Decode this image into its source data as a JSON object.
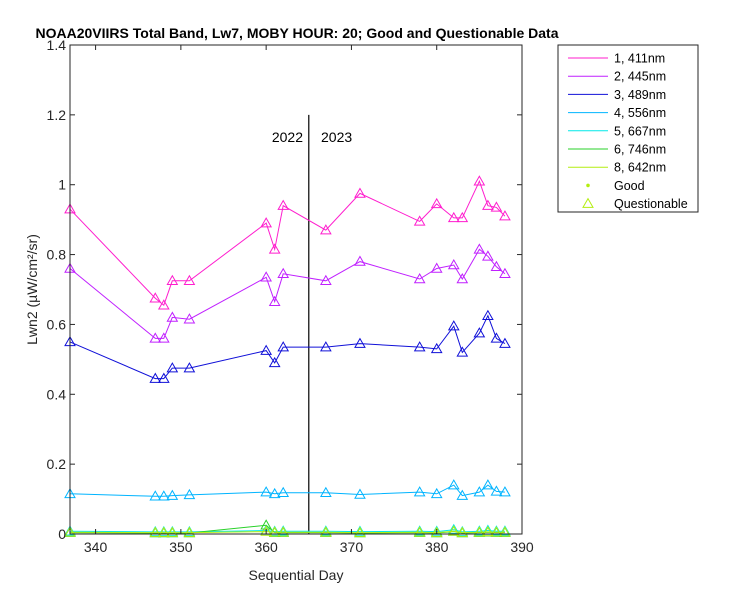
{
  "chart_data": {
    "type": "line",
    "title": "NOAA20VIIRS Total Band, Lw7, MOBY HOUR: 20;  Good and Questionable Data",
    "xlabel": "Sequential Day",
    "ylabel": "Lwn2 (µW/cm²/sr)",
    "xlim": [
      337,
      390
    ],
    "ylim": [
      0,
      1.4
    ],
    "xticks": [
      340,
      350,
      360,
      370,
      380,
      390
    ],
    "yticks": [
      0,
      0.2,
      0.4,
      0.6,
      0.8,
      1,
      1.2,
      1.4
    ],
    "grid": false,
    "legend_position": "outside-top-right",
    "year_divider": {
      "x": 365,
      "ymax": 1.2,
      "left_label": "2022",
      "right_label": "2023"
    },
    "x": [
      337,
      347,
      348,
      349,
      351,
      360,
      361,
      362,
      367,
      371,
      378,
      380,
      382,
      383,
      385,
      386,
      387,
      388
    ],
    "series": [
      {
        "name": "1, 411nm",
        "color": "#ff1dce",
        "values": [
          0.93,
          0.675,
          0.655,
          0.725,
          0.725,
          0.89,
          0.815,
          0.94,
          0.87,
          0.975,
          0.895,
          0.945,
          0.905,
          0.905,
          1.01,
          0.94,
          0.935,
          0.91
        ]
      },
      {
        "name": "2, 445nm",
        "color": "#c020ff",
        "values": [
          0.76,
          0.56,
          0.56,
          0.62,
          0.615,
          0.735,
          0.665,
          0.745,
          0.725,
          0.78,
          0.73,
          0.76,
          0.77,
          0.73,
          0.815,
          0.795,
          0.765,
          0.745
        ]
      },
      {
        "name": "3, 489nm",
        "color": "#1010d8",
        "values": [
          0.55,
          0.445,
          0.445,
          0.475,
          0.475,
          0.525,
          0.49,
          0.535,
          0.535,
          0.545,
          0.535,
          0.53,
          0.595,
          0.52,
          0.575,
          0.625,
          0.56,
          0.545
        ]
      },
      {
        "name": "4, 556nm",
        "color": "#00b4ff",
        "values": [
          0.115,
          0.108,
          0.108,
          0.11,
          0.112,
          0.12,
          0.115,
          0.118,
          0.118,
          0.113,
          0.12,
          0.115,
          0.14,
          0.11,
          0.12,
          0.14,
          0.122,
          0.12
        ]
      },
      {
        "name": "5, 667nm",
        "color": "#00e8e8",
        "values": [
          0.008,
          0.006,
          0.006,
          0.006,
          0.006,
          0.01,
          0.007,
          0.008,
          0.008,
          0.007,
          0.008,
          0.007,
          0.012,
          0.006,
          0.008,
          0.01,
          0.008,
          0.008
        ]
      },
      {
        "name": "6, 746nm",
        "color": "#2ad12a",
        "values": [
          0.004,
          0.003,
          0.003,
          0.003,
          0.003,
          0.025,
          0.004,
          0.004,
          0.004,
          0.003,
          0.004,
          0.003,
          0.007,
          0.003,
          0.004,
          0.005,
          0.004,
          0.004
        ]
      },
      {
        "name": "8, 642nm",
        "color": "#b4ee10",
        "values": [
          0.005,
          0.004,
          0.004,
          0.004,
          0.004,
          0.007,
          0.005,
          0.005,
          0.005,
          0.004,
          0.005,
          0.004,
          0.008,
          0.004,
          0.005,
          0.006,
          0.005,
          0.005
        ]
      }
    ],
    "marker_series": [
      {
        "name": "Good",
        "color": "#b4ee10",
        "marker": "point"
      },
      {
        "name": "Questionable",
        "color": "#b4ee10",
        "marker": "triangle"
      }
    ]
  }
}
